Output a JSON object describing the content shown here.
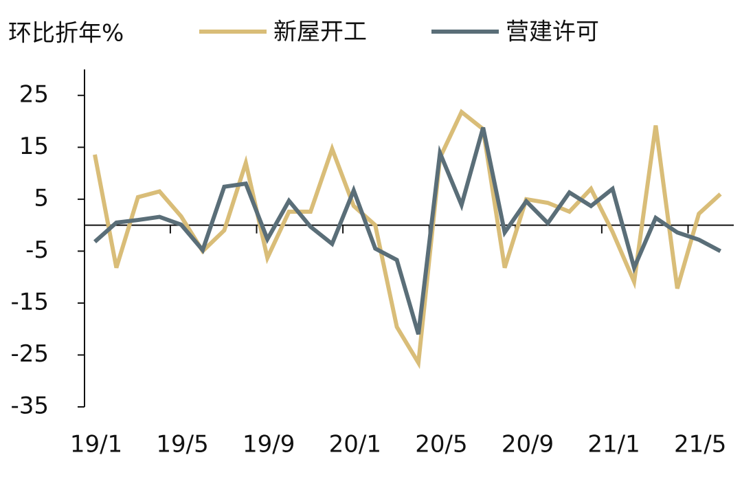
{
  "chart_data": {
    "type": "line",
    "y_label": "环比折年%",
    "categories": [
      "19/1",
      null,
      null,
      null,
      "19/5",
      null,
      null,
      null,
      "19/9",
      null,
      null,
      null,
      "20/1",
      null,
      null,
      null,
      "20/5",
      null,
      null,
      null,
      "20/9",
      null,
      null,
      null,
      "21/1",
      null,
      null,
      null,
      "21/5",
      null
    ],
    "series": [
      {
        "name": "新屋开工",
        "color": "#d9bd78",
        "values": [
          13.6,
          -8.2,
          5.4,
          6.5,
          1.7,
          -5,
          -1,
          12,
          -6.3,
          2.6,
          2.6,
          14.7,
          3.7,
          0,
          -19.6,
          -26.5,
          13,
          21.8,
          18.5,
          -8.2,
          5,
          4.3,
          2.6,
          7,
          -1.3,
          -10.9,
          19.2,
          -12.2,
          2.2,
          6
        ]
      },
      {
        "name": "营建许可",
        "color": "#5a6e78",
        "values": [
          -3.2,
          0.5,
          1,
          1.6,
          0.1,
          -4.8,
          7.4,
          8,
          -2.7,
          4.7,
          -0.3,
          -3.6,
          6.7,
          -4.5,
          -6.7,
          -21,
          13.9,
          3.9,
          18.8,
          -1.4,
          4.6,
          0.4,
          6.3,
          3.7,
          7,
          -8.2,
          1.4,
          -1.4,
          -2.8,
          -5
        ]
      }
    ],
    "ylim": [
      -35,
      30
    ],
    "yticks": [
      25,
      15,
      5,
      -5,
      -15,
      -25,
      -35
    ]
  }
}
